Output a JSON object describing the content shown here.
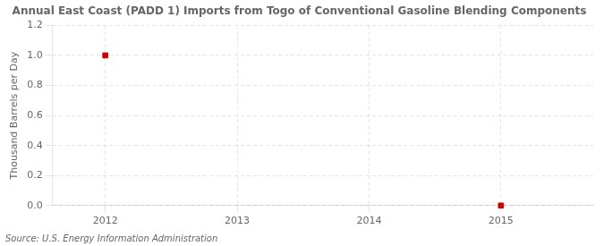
{
  "chart_data": {
    "type": "scatter",
    "title": "Annual East Coast (PADD 1) Imports from Togo of Conventional Gasoline Blending Components",
    "ylabel": "Thousand Barrels per Day",
    "annotations": [
      "Source: U.S. Energy Information Administration"
    ],
    "x": [
      2012,
      2015
    ],
    "values": [
      1.0,
      0.0
    ],
    "color": "#cc0000",
    "marker": "square",
    "xlim": [
      2011.6,
      2015.7
    ],
    "ylim": [
      0.0,
      1.2
    ],
    "xticks": [
      2012,
      2013,
      2014,
      2015
    ],
    "yticks": [
      {
        "value": 0.0,
        "label": "0.0"
      },
      0.2,
      0.4,
      0.6,
      0.8,
      {
        "value": 1.0,
        "label": "1.0"
      },
      1.2
    ],
    "grid": true
  }
}
